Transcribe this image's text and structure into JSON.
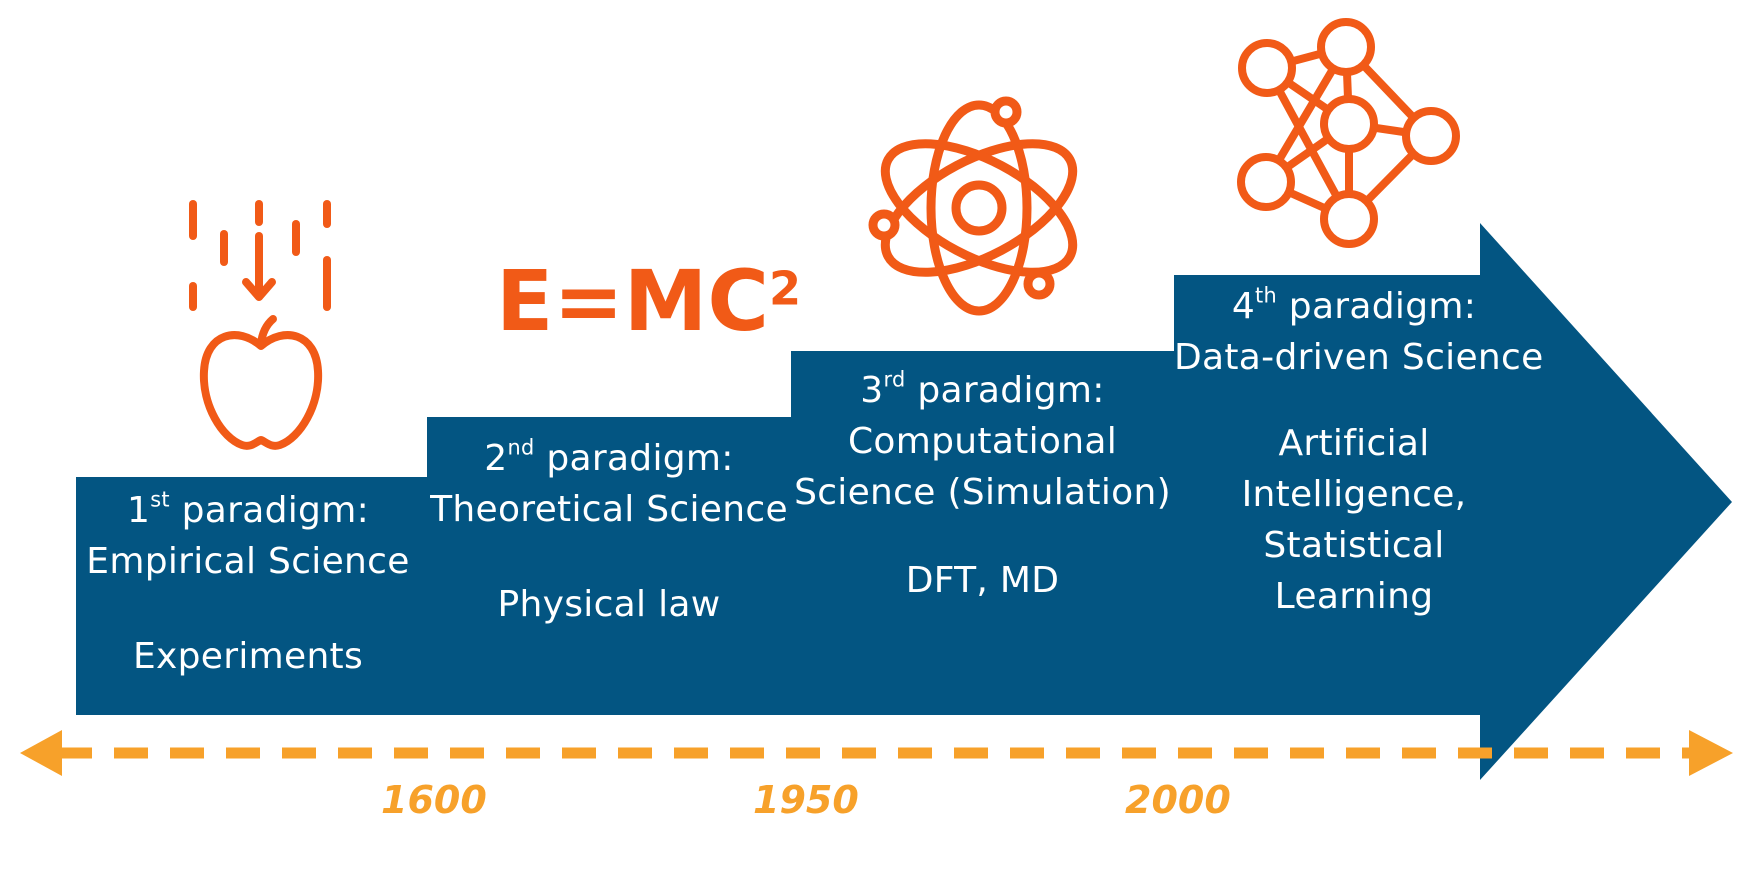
{
  "colors": {
    "block_fill": "#035582",
    "icon_orange": "#F15A17",
    "timeline_orange": "#F7A12A",
    "text_white": "#FFFFFF"
  },
  "paradigms": [
    {
      "ordinal": "1",
      "suffix": "st",
      "label": " paradigm:",
      "name": "Empirical Science",
      "example": "Experiments",
      "icon": "falling-apple-icon"
    },
    {
      "ordinal": "2",
      "suffix": "nd",
      "label": " paradigm:",
      "name": "Theoretical Science",
      "example": "Physical law",
      "icon": "emc2-formula-icon"
    },
    {
      "ordinal": "3",
      "suffix": "rd",
      "label": " paradigm:",
      "name_lines": [
        "Computational",
        "Science (Simulation)"
      ],
      "example": "DFT, MD",
      "icon": "atom-icon"
    },
    {
      "ordinal": "4",
      "suffix": "th",
      "label": " paradigm:",
      "name": "Data-driven Science",
      "example_lines": [
        "Artificial",
        "Intelligence,",
        "Statistical",
        "Learning"
      ],
      "icon": "neural-network-icon"
    }
  ],
  "formula": {
    "base": "E=MC",
    "exponent": "2"
  },
  "timeline": {
    "years": [
      "1600",
      "1950",
      "2000"
    ],
    "style": "dashed double-headed arrow"
  }
}
